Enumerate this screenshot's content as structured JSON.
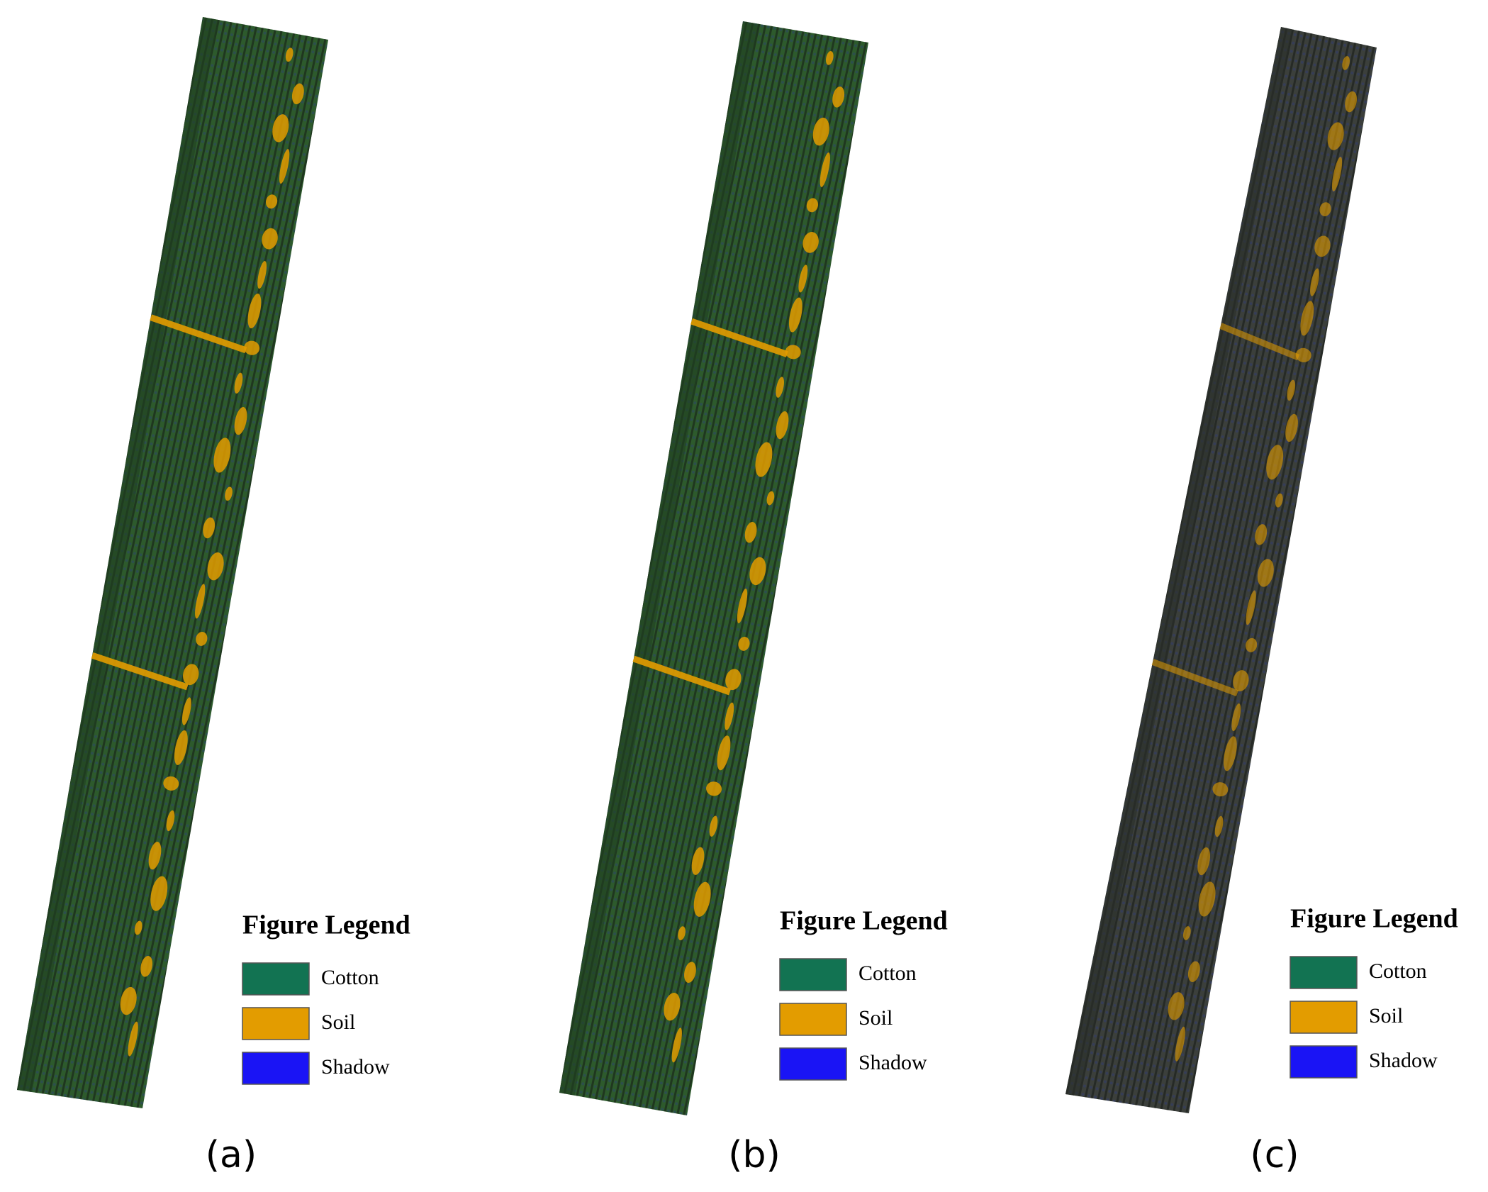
{
  "panels": [
    {
      "caption": "(a)",
      "legend": {
        "title": "Figure Legend",
        "items": [
          {
            "label": "Cotton",
            "color": "#127352"
          },
          {
            "label": "Soil",
            "color": "#e39c00"
          },
          {
            "label": "Shadow",
            "color": "#1a14f5"
          }
        ]
      }
    },
    {
      "caption": "(b)",
      "legend": {
        "title": "Figure Legend",
        "items": [
          {
            "label": "Cotton",
            "color": "#127352"
          },
          {
            "label": "Soil",
            "color": "#e39c00"
          },
          {
            "label": "Shadow",
            "color": "#1a14f5"
          }
        ]
      }
    },
    {
      "caption": "(c)",
      "legend": {
        "title": "Figure Legend",
        "items": [
          {
            "label": "Cotton",
            "color": "#127352"
          },
          {
            "label": "Soil",
            "color": "#e39c00"
          },
          {
            "label": "Shadow",
            "color": "#1a14f5"
          }
        ]
      }
    }
  ]
}
